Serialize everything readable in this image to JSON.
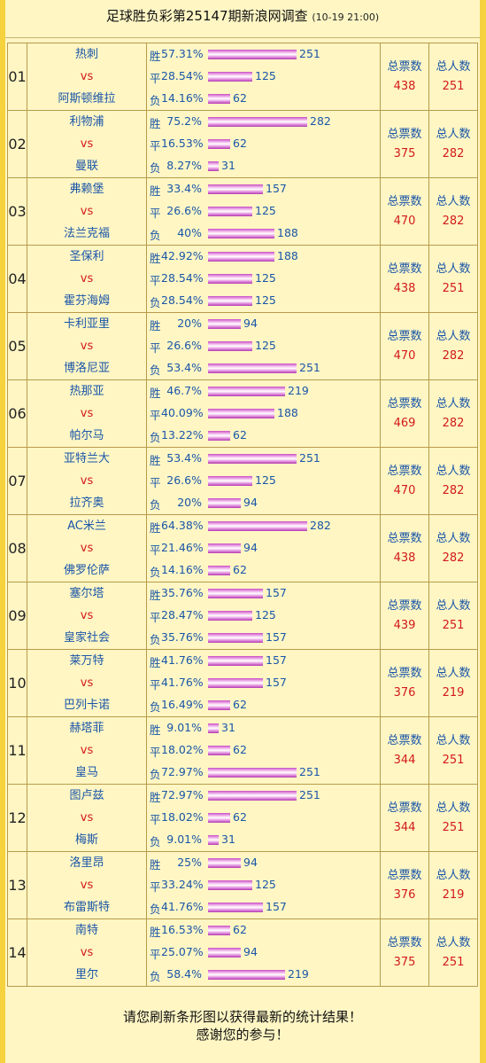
{
  "header": {
    "title": "足球胜负彩第25147期新浪网调查",
    "time": "(10-19 21:00)"
  },
  "labels": {
    "win": "胜",
    "draw": "平",
    "loss": "负",
    "vs": "vs",
    "total_votes": "总票数",
    "total_people": "总人数"
  },
  "matches": [
    {
      "no": "01",
      "home": "热刺",
      "away": "阿斯顿维拉",
      "win_pct": "57.31%",
      "win": "251",
      "draw_pct": "28.54%",
      "draw": "125",
      "loss_pct": "14.16%",
      "loss": "62",
      "votes": "438",
      "people": "251"
    },
    {
      "no": "02",
      "home": "利物浦",
      "away": "曼联",
      "win_pct": "75.2%",
      "win": "282",
      "draw_pct": "16.53%",
      "draw": "62",
      "loss_pct": "8.27%",
      "loss": "31",
      "votes": "375",
      "people": "282"
    },
    {
      "no": "03",
      "home": "弗赖堡",
      "away": "法兰克福",
      "win_pct": "33.4%",
      "win": "157",
      "draw_pct": "26.6%",
      "draw": "125",
      "loss_pct": "40%",
      "loss": "188",
      "votes": "470",
      "people": "282"
    },
    {
      "no": "04",
      "home": "圣保利",
      "away": "霍芬海姆",
      "win_pct": "42.92%",
      "win": "188",
      "draw_pct": "28.54%",
      "draw": "125",
      "loss_pct": "28.54%",
      "loss": "125",
      "votes": "438",
      "people": "251"
    },
    {
      "no": "05",
      "home": "卡利亚里",
      "away": "博洛尼亚",
      "win_pct": "20%",
      "win": "94",
      "draw_pct": "26.6%",
      "draw": "125",
      "loss_pct": "53.4%",
      "loss": "251",
      "votes": "470",
      "people": "282"
    },
    {
      "no": "06",
      "home": "热那亚",
      "away": "帕尔马",
      "win_pct": "46.7%",
      "win": "219",
      "draw_pct": "40.09%",
      "draw": "188",
      "loss_pct": "13.22%",
      "loss": "62",
      "votes": "469",
      "people": "282"
    },
    {
      "no": "07",
      "home": "亚特兰大",
      "away": "拉齐奥",
      "win_pct": "53.4%",
      "win": "251",
      "draw_pct": "26.6%",
      "draw": "125",
      "loss_pct": "20%",
      "loss": "94",
      "votes": "470",
      "people": "282"
    },
    {
      "no": "08",
      "home": "AC米兰",
      "away": "佛罗伦萨",
      "win_pct": "64.38%",
      "win": "282",
      "draw_pct": "21.46%",
      "draw": "94",
      "loss_pct": "14.16%",
      "loss": "62",
      "votes": "438",
      "people": "282"
    },
    {
      "no": "09",
      "home": "塞尔塔",
      "away": "皇家社会",
      "win_pct": "35.76%",
      "win": "157",
      "draw_pct": "28.47%",
      "draw": "125",
      "loss_pct": "35.76%",
      "loss": "157",
      "votes": "439",
      "people": "251"
    },
    {
      "no": "10",
      "home": "莱万特",
      "away": "巴列卡诺",
      "win_pct": "41.76%",
      "win": "157",
      "draw_pct": "41.76%",
      "draw": "157",
      "loss_pct": "16.49%",
      "loss": "62",
      "votes": "376",
      "people": "219"
    },
    {
      "no": "11",
      "home": "赫塔菲",
      "away": "皇马",
      "win_pct": "9.01%",
      "win": "31",
      "draw_pct": "18.02%",
      "draw": "62",
      "loss_pct": "72.97%",
      "loss": "251",
      "votes": "344",
      "people": "251"
    },
    {
      "no": "12",
      "home": "图卢兹",
      "away": "梅斯",
      "win_pct": "72.97%",
      "win": "251",
      "draw_pct": "18.02%",
      "draw": "62",
      "loss_pct": "9.01%",
      "loss": "31",
      "votes": "344",
      "people": "251"
    },
    {
      "no": "13",
      "home": "洛里昂",
      "away": "布雷斯特",
      "win_pct": "25%",
      "win": "94",
      "draw_pct": "33.24%",
      "draw": "125",
      "loss_pct": "41.76%",
      "loss": "157",
      "votes": "376",
      "people": "219"
    },
    {
      "no": "14",
      "home": "南特",
      "away": "里尔",
      "win_pct": "16.53%",
      "win": "62",
      "draw_pct": "25.07%",
      "draw": "94",
      "loss_pct": "58.4%",
      "loss": "219",
      "votes": "375",
      "people": "251"
    }
  ],
  "footer": {
    "line1": "请您刷新条形图以获得最新的统计结果！",
    "line2": "感谢您的参与！"
  },
  "colors": {
    "background": "#f5d23e",
    "panel": "#fff6c4",
    "team_text": "#1a56a8",
    "vs_text": "#d21a1a",
    "bar": "#d86ad4"
  }
}
